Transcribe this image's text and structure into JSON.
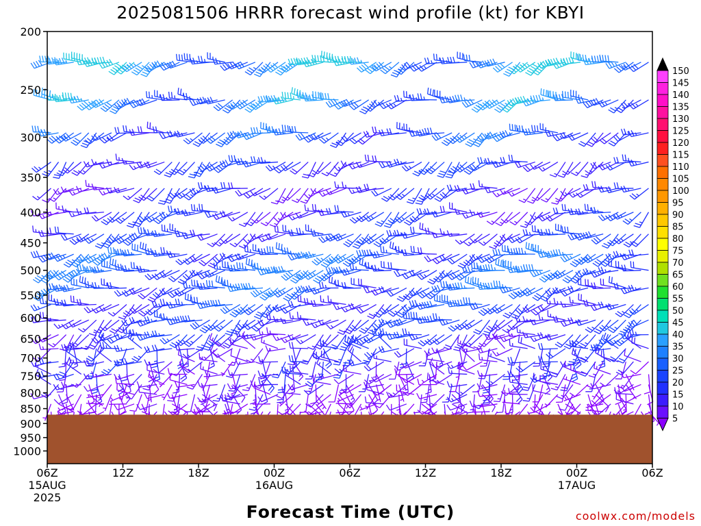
{
  "title": "2025081506 HRRR forecast wind profile (kt) for KBYI",
  "xlabel": "Forecast Time (UTC)",
  "credit": "coolwx.com/models",
  "chart_data": {
    "type": "wind_barb_time_height",
    "units": "kt",
    "y_axis": {
      "quantity": "pressure (hPa)",
      "scale": "log, inverted",
      "range": [
        200,
        1050
      ],
      "ticks": [
        200,
        250,
        300,
        350,
        400,
        450,
        500,
        550,
        600,
        650,
        700,
        750,
        800,
        850,
        900,
        950,
        1000
      ]
    },
    "x_axis": {
      "range_hours": [
        0,
        48
      ],
      "ticks": [
        {
          "hour": 0,
          "label": "06Z",
          "sub": "15AUG",
          "sub2": "2025"
        },
        {
          "hour": 6,
          "label": "12Z",
          "sub": "",
          "sub2": ""
        },
        {
          "hour": 12,
          "label": "18Z",
          "sub": "",
          "sub2": ""
        },
        {
          "hour": 18,
          "label": "00Z",
          "sub": "16AUG",
          "sub2": ""
        },
        {
          "hour": 24,
          "label": "06Z",
          "sub": "",
          "sub2": ""
        },
        {
          "hour": 30,
          "label": "12Z",
          "sub": "",
          "sub2": ""
        },
        {
          "hour": 36,
          "label": "18Z",
          "sub": "",
          "sub2": ""
        },
        {
          "hour": 42,
          "label": "00Z",
          "sub": "17AUG",
          "sub2": ""
        },
        {
          "hour": 48,
          "label": "06Z",
          "sub": "",
          "sub2": ""
        }
      ]
    },
    "surface_pressure_hpa": 870,
    "colorbar": {
      "levels": [
        5,
        10,
        15,
        20,
        25,
        30,
        35,
        40,
        45,
        50,
        55,
        60,
        65,
        70,
        75,
        80,
        85,
        90,
        95,
        100,
        105,
        110,
        115,
        120,
        125,
        130,
        135,
        140,
        145,
        150
      ],
      "colors": [
        "#8a00ff",
        "#6a10ff",
        "#3c1cff",
        "#2030ff",
        "#1a44ff",
        "#1860ff",
        "#1e80ff",
        "#2aa0ff",
        "#20c8e0",
        "#00e0b8",
        "#00e070",
        "#20e030",
        "#70e020",
        "#b0e000",
        "#e8f000",
        "#ffff00",
        "#ffe000",
        "#ffc800",
        "#ffb000",
        "#ff9800",
        "#ff8800",
        "#ff7000",
        "#ff5020",
        "#ff2020",
        "#ff1040",
        "#ff1070",
        "#ff10a0",
        "#ff10c8",
        "#ff20e0",
        "#ff40ff"
      ]
    },
    "levels_hpa": [
      225,
      260,
      295,
      330,
      365,
      400,
      435,
      470,
      500,
      535,
      570,
      605,
      640,
      675,
      710,
      745,
      775,
      805,
      835,
      860
    ],
    "profile": [
      {
        "p": 225,
        "dir": 250,
        "spd": 38
      },
      {
        "p": 260,
        "dir": 255,
        "spd": 35
      },
      {
        "p": 295,
        "dir": 250,
        "spd": 28
      },
      {
        "p": 330,
        "dir": 240,
        "spd": 22
      },
      {
        "p": 365,
        "dir": 240,
        "spd": 18
      },
      {
        "p": 400,
        "dir": 245,
        "spd": 20
      },
      {
        "p": 435,
        "dir": 250,
        "spd": 22
      },
      {
        "p": 470,
        "dir": 255,
        "spd": 28
      },
      {
        "p": 500,
        "dir": 255,
        "spd": 30
      },
      {
        "p": 535,
        "dir": 255,
        "spd": 28
      },
      {
        "p": 570,
        "dir": 250,
        "spd": 24
      },
      {
        "p": 605,
        "dir": 245,
        "spd": 22
      },
      {
        "p": 640,
        "dir": 240,
        "spd": 20
      },
      {
        "p": 675,
        "dir": 235,
        "spd": 18
      },
      {
        "p": 710,
        "dir": 230,
        "spd": 16
      },
      {
        "p": 745,
        "dir": 225,
        "spd": 14
      },
      {
        "p": 775,
        "dir": 220,
        "spd": 12
      },
      {
        "p": 805,
        "dir": 210,
        "spd": 10
      },
      {
        "p": 835,
        "dir": 200,
        "spd": 8
      },
      {
        "p": 860,
        "dir": 190,
        "spd": 6
      }
    ],
    "grid": false,
    "legend_position": "right"
  }
}
